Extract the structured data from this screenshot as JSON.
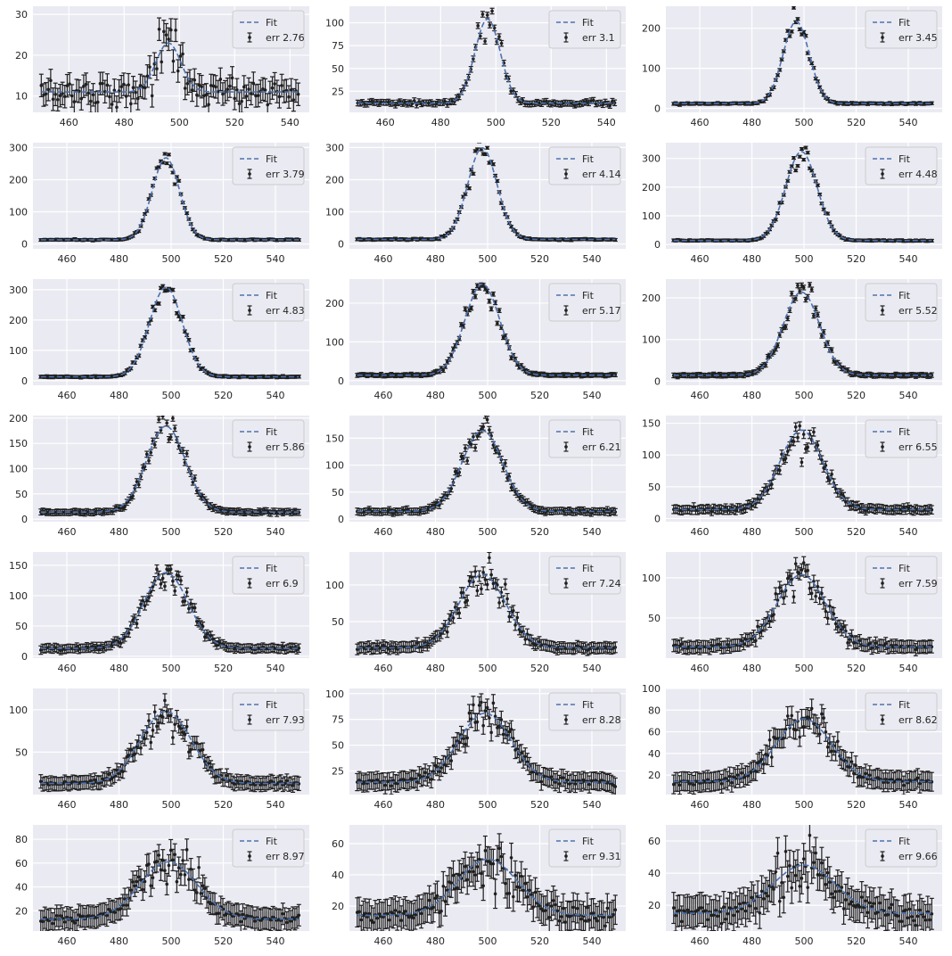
{
  "figure": {
    "rows": 7,
    "cols": 3
  },
  "colors": {
    "panel_bg": "#eaeaf2",
    "grid": "#ffffff",
    "tick_text": "#262626",
    "fit_line": "#4c72b0",
    "points": "#1f1f1f",
    "legend_bg": "#eaeaf2",
    "legend_border": "#cccccc"
  },
  "chart_data": [
    {
      "type": "scatter",
      "legend": [
        "Fit",
        "err 2.76"
      ],
      "xlim": [
        447,
        547
      ],
      "ylim": [
        6,
        32
      ],
      "xticks": [
        460,
        480,
        500,
        520,
        540
      ],
      "yticks": [
        10,
        20,
        30
      ],
      "model": {
        "mu": 496,
        "sigma": 4.5,
        "amp": 12,
        "base": 11
      },
      "x_max": 543,
      "n_points": 110,
      "error": 2.76,
      "noise_scale": 0.15
    },
    {
      "type": "scatter",
      "legend": [
        "Fit",
        "err 3.1"
      ],
      "xlim": [
        447,
        547
      ],
      "ylim": [
        2,
        118
      ],
      "xticks": [
        460,
        480,
        500,
        520,
        540
      ],
      "yticks": [
        25,
        50,
        75,
        100
      ],
      "model": {
        "mu": 497,
        "sigma": 4.6,
        "amp": 92,
        "base": 12
      },
      "x_max": 543,
      "n_points": 110,
      "error": 3.1,
      "noise_scale": 0.1
    },
    {
      "type": "scatter",
      "legend": [
        "Fit",
        "err 3.45"
      ],
      "xlim": [
        447,
        553
      ],
      "ylim": [
        -10,
        255
      ],
      "xticks": [
        460,
        480,
        500,
        520,
        540
      ],
      "yticks": [
        0,
        100,
        200
      ],
      "model": {
        "mu": 497,
        "sigma": 5.0,
        "amp": 205,
        "base": 12
      },
      "x_max": 549,
      "n_points": 130,
      "error": 3.45,
      "noise_scale": 0.08
    },
    {
      "type": "scatter",
      "legend": [
        "Fit",
        "err 3.79"
      ],
      "xlim": [
        447,
        553
      ],
      "ylim": [
        -15,
        315
      ],
      "xticks": [
        460,
        480,
        500,
        520,
        540
      ],
      "yticks": [
        0,
        100,
        200,
        300
      ],
      "model": {
        "mu": 498,
        "sigma": 5.2,
        "amp": 255,
        "base": 13
      },
      "x_max": 549,
      "n_points": 130,
      "error": 3.79,
      "noise_scale": 0.07
    },
    {
      "type": "scatter",
      "legend": [
        "Fit",
        "err 4.14"
      ],
      "xlim": [
        447,
        553
      ],
      "ylim": [
        -15,
        315
      ],
      "xticks": [
        460,
        480,
        500,
        520,
        540
      ],
      "yticks": [
        0,
        100,
        200,
        300
      ],
      "model": {
        "mu": 498,
        "sigma": 5.6,
        "amp": 285,
        "base": 14
      },
      "x_max": 549,
      "n_points": 130,
      "error": 4.14,
      "noise_scale": 0.07
    },
    {
      "type": "scatter",
      "legend": [
        "Fit",
        "err 4.48"
      ],
      "xlim": [
        447,
        553
      ],
      "ylim": [
        -15,
        355
      ],
      "xticks": [
        460,
        480,
        500,
        520,
        540
      ],
      "yticks": [
        0,
        100,
        200,
        300
      ],
      "model": {
        "mu": 499,
        "sigma": 6.0,
        "amp": 310,
        "base": 14
      },
      "x_max": 549,
      "n_points": 130,
      "error": 4.48,
      "noise_scale": 0.07
    },
    {
      "type": "scatter",
      "legend": [
        "Fit",
        "err 4.83"
      ],
      "xlim": [
        447,
        553
      ],
      "ylim": [
        -15,
        335
      ],
      "xticks": [
        460,
        480,
        500,
        520,
        540
      ],
      "yticks": [
        0,
        100,
        200,
        300
      ],
      "model": {
        "mu": 498,
        "sigma": 6.3,
        "amp": 295,
        "base": 13
      },
      "x_max": 549,
      "n_points": 130,
      "error": 4.83,
      "noise_scale": 0.07
    },
    {
      "type": "scatter",
      "legend": [
        "Fit",
        "err 5.17"
      ],
      "xlim": [
        447,
        553
      ],
      "ylim": [
        -12,
        262
      ],
      "xticks": [
        460,
        480,
        500,
        520,
        540
      ],
      "yticks": [
        0,
        100,
        200
      ],
      "model": {
        "mu": 498,
        "sigma": 6.7,
        "amp": 235,
        "base": 14
      },
      "x_max": 549,
      "n_points": 130,
      "error": 5.17,
      "noise_scale": 0.08
    },
    {
      "type": "scatter",
      "legend": [
        "Fit",
        "err 5.52"
      ],
      "xlim": [
        447,
        553
      ],
      "ylim": [
        -10,
        245
      ],
      "xticks": [
        460,
        480,
        500,
        520,
        540
      ],
      "yticks": [
        0,
        100,
        200
      ],
      "model": {
        "mu": 499,
        "sigma": 7.0,
        "amp": 200,
        "base": 14
      },
      "x_max": 549,
      "n_points": 130,
      "error": 5.52,
      "noise_scale": 0.08
    },
    {
      "type": "scatter",
      "legend": [
        "Fit",
        "err 5.86"
      ],
      "xlim": [
        447,
        553
      ],
      "ylim": [
        -5,
        205
      ],
      "xticks": [
        460,
        480,
        500,
        520,
        540
      ],
      "yticks": [
        0,
        50,
        100,
        150,
        200
      ],
      "model": {
        "mu": 498,
        "sigma": 7.4,
        "amp": 170,
        "base": 14
      },
      "x_max": 549,
      "n_points": 130,
      "error": 5.86,
      "noise_scale": 0.09
    },
    {
      "type": "scatter",
      "legend": [
        "Fit",
        "err 6.21"
      ],
      "xlim": [
        447,
        553
      ],
      "ylim": [
        -5,
        192
      ],
      "xticks": [
        460,
        480,
        500,
        520,
        540
      ],
      "yticks": [
        0,
        50,
        100,
        150
      ],
      "model": {
        "mu": 498,
        "sigma": 7.8,
        "amp": 150,
        "base": 14
      },
      "x_max": 549,
      "n_points": 130,
      "error": 6.21,
      "noise_scale": 0.09
    },
    {
      "type": "scatter",
      "legend": [
        "Fit",
        "err 6.55"
      ],
      "xlim": [
        447,
        553
      ],
      "ylim": [
        -5,
        162
      ],
      "xticks": [
        460,
        480,
        500,
        520,
        540
      ],
      "yticks": [
        0,
        50,
        100,
        150
      ],
      "model": {
        "mu": 499,
        "sigma": 8.2,
        "amp": 125,
        "base": 14
      },
      "x_max": 549,
      "n_points": 130,
      "error": 6.55,
      "noise_scale": 0.1
    },
    {
      "type": "scatter",
      "legend": [
        "Fit",
        "err 6.9"
      ],
      "xlim": [
        447,
        553
      ],
      "ylim": [
        -3,
        172
      ],
      "xticks": [
        460,
        480,
        500,
        520,
        540
      ],
      "yticks": [
        0,
        50,
        100,
        150
      ],
      "model": {
        "mu": 498,
        "sigma": 8.5,
        "amp": 125,
        "base": 13
      },
      "x_max": 549,
      "n_points": 130,
      "error": 6.9,
      "noise_scale": 0.1
    },
    {
      "type": "scatter",
      "legend": [
        "Fit",
        "err 7.24"
      ],
      "xlim": [
        447,
        553
      ],
      "ylim": [
        0,
        145
      ],
      "xticks": [
        460,
        480,
        500,
        520,
        540
      ],
      "yticks": [
        50,
        100
      ],
      "model": {
        "mu": 498,
        "sigma": 9.0,
        "amp": 100,
        "base": 14
      },
      "x_max": 549,
      "n_points": 130,
      "error": 7.24,
      "noise_scale": 0.11
    },
    {
      "type": "scatter",
      "legend": [
        "Fit",
        "err 7.59"
      ],
      "xlim": [
        447,
        553
      ],
      "ylim": [
        0,
        132
      ],
      "xticks": [
        460,
        480,
        500,
        520,
        540
      ],
      "yticks": [
        50,
        100
      ],
      "model": {
        "mu": 499,
        "sigma": 9.3,
        "amp": 90,
        "base": 14
      },
      "x_max": 549,
      "n_points": 130,
      "error": 7.59,
      "noise_scale": 0.11
    },
    {
      "type": "scatter",
      "legend": [
        "Fit",
        "err 7.93"
      ],
      "xlim": [
        447,
        553
      ],
      "ylim": [
        0,
        125
      ],
      "xticks": [
        460,
        480,
        500,
        520,
        540
      ],
      "yticks": [
        50,
        100
      ],
      "model": {
        "mu": 498,
        "sigma": 9.7,
        "amp": 85,
        "base": 13
      },
      "x_max": 549,
      "n_points": 130,
      "error": 7.93,
      "noise_scale": 0.11
    },
    {
      "type": "scatter",
      "legend": [
        "Fit",
        "err 8.28"
      ],
      "xlim": [
        447,
        553
      ],
      "ylim": [
        2,
        105
      ],
      "xticks": [
        460,
        480,
        500,
        520,
        540
      ],
      "yticks": [
        25,
        50,
        75,
        100
      ],
      "model": {
        "mu": 499,
        "sigma": 10.0,
        "amp": 67,
        "base": 14
      },
      "x_max": 549,
      "n_points": 130,
      "error": 8.28,
      "noise_scale": 0.12
    },
    {
      "type": "scatter",
      "legend": [
        "Fit",
        "err 8.62"
      ],
      "xlim": [
        447,
        553
      ],
      "ylim": [
        2,
        100
      ],
      "xticks": [
        460,
        480,
        500,
        520,
        540
      ],
      "yticks": [
        20,
        40,
        60,
        80,
        100
      ],
      "model": {
        "mu": 500,
        "sigma": 10.5,
        "amp": 58,
        "base": 14
      },
      "x_max": 549,
      "n_points": 130,
      "error": 8.62,
      "noise_scale": 0.12
    },
    {
      "type": "scatter",
      "legend": [
        "Fit",
        "err 8.97"
      ],
      "xlim": [
        447,
        553
      ],
      "ylim": [
        3,
        92
      ],
      "xticks": [
        460,
        480,
        500,
        520,
        540
      ],
      "yticks": [
        20,
        40,
        60,
        80
      ],
      "model": {
        "mu": 499,
        "sigma": 11.0,
        "amp": 48,
        "base": 13
      },
      "x_max": 549,
      "n_points": 130,
      "error": 8.97,
      "noise_scale": 0.14
    },
    {
      "type": "scatter",
      "legend": [
        "Fit",
        "err 9.31"
      ],
      "xlim": [
        447,
        553
      ],
      "ylim": [
        4,
        72
      ],
      "xticks": [
        460,
        480,
        500,
        520,
        540
      ],
      "yticks": [
        20,
        40,
        60
      ],
      "model": {
        "mu": 500,
        "sigma": 11.5,
        "amp": 36,
        "base": 14
      },
      "x_max": 549,
      "n_points": 130,
      "error": 9.31,
      "noise_scale": 0.16
    },
    {
      "type": "scatter",
      "legend": [
        "Fit",
        "err 9.66"
      ],
      "xlim": [
        447,
        553
      ],
      "ylim": [
        4,
        70
      ],
      "xticks": [
        460,
        480,
        500,
        520,
        540
      ],
      "yticks": [
        20,
        40,
        60
      ],
      "model": {
        "mu": 500,
        "sigma": 12.0,
        "amp": 30,
        "base": 15
      },
      "x_max": 549,
      "n_points": 130,
      "error": 9.66,
      "noise_scale": 0.17
    }
  ]
}
